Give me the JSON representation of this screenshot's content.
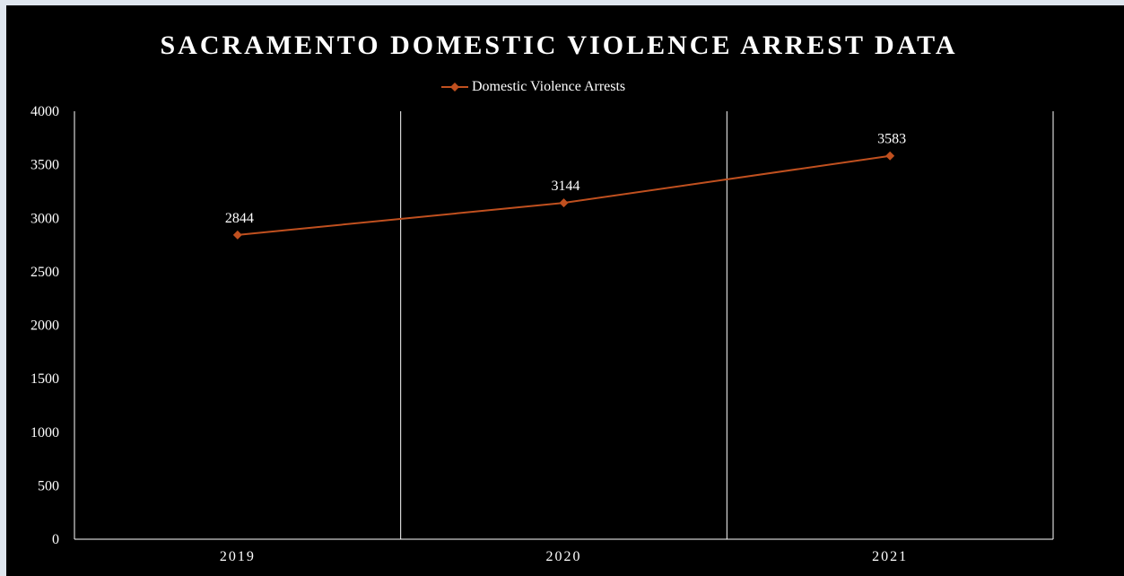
{
  "chart_data": {
    "type": "line",
    "title": "SACRAMENTO DOMESTIC VIOLENCE ARREST DATA",
    "categories": [
      "2019",
      "2020",
      "2021"
    ],
    "series": [
      {
        "name": "Domestic Violence Arrests",
        "values": [
          2844,
          3144,
          3583
        ],
        "color": "#c0501f"
      }
    ],
    "xlabel": "",
    "ylabel": "",
    "ylim": [
      0,
      4000
    ],
    "yticks": [
      0,
      500,
      1000,
      1500,
      2000,
      2500,
      3000,
      3500,
      4000
    ],
    "grid": "vertical",
    "legend": "top",
    "marker": "diamond",
    "data_labels": [
      "2844",
      "3144",
      "3583"
    ],
    "colors": {
      "background": "#000000",
      "text": "#ffffff",
      "gridline": "#ffffff"
    }
  }
}
